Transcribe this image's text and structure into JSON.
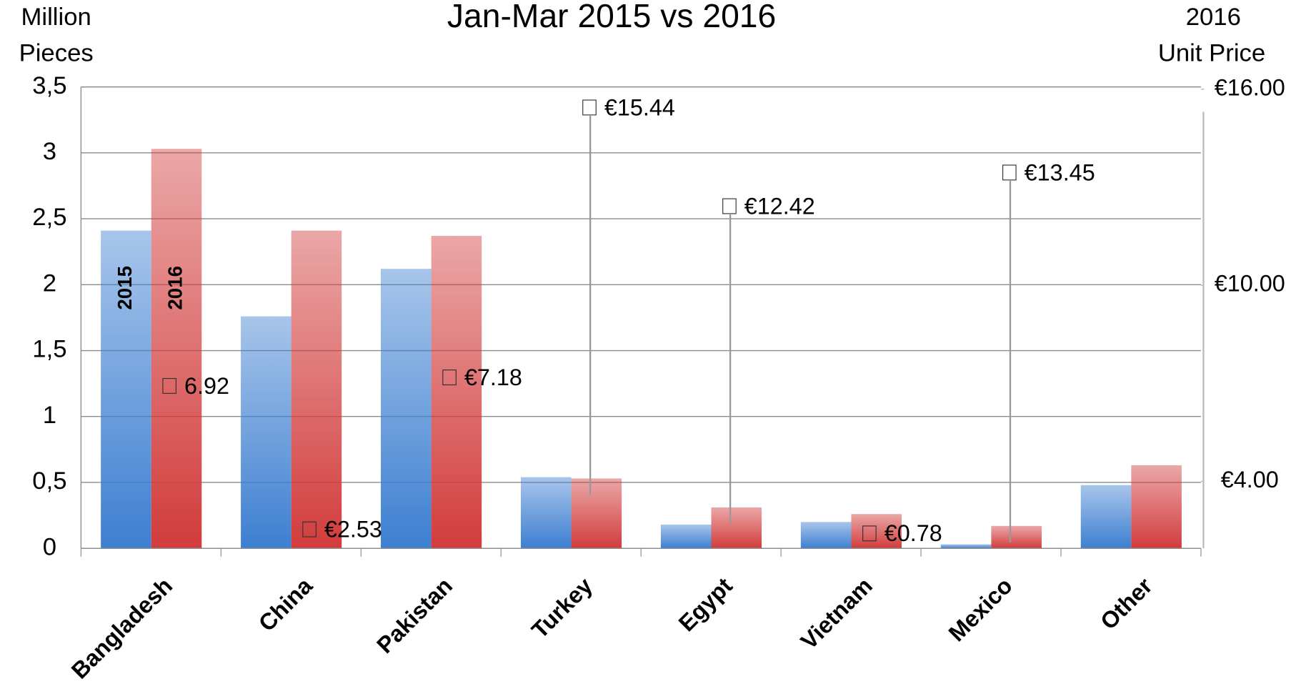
{
  "chart_data": {
    "type": "bar",
    "title": "Jan-Mar 2015 vs 2016",
    "y_label": [
      "Million",
      "Pieces"
    ],
    "y2_label": [
      "2016",
      "Unit Price"
    ],
    "categories": [
      "Bangladesh",
      "China",
      "Pakistan",
      "Turkey",
      "Egypt",
      "Vietnam",
      "Mexico",
      "Other"
    ],
    "series": [
      {
        "name": "2015",
        "color": "#3d7fd1",
        "values": [
          2.41,
          1.76,
          2.12,
          0.54,
          0.18,
          0.2,
          0.03,
          0.48
        ]
      },
      {
        "name": "2016",
        "color": "#d23c3c",
        "values": [
          3.03,
          2.41,
          2.37,
          0.53,
          0.31,
          0.26,
          0.17,
          0.63
        ]
      },
      {
        "name": "2016 Unit Price",
        "axis": "y2",
        "values": [
          6.92,
          2.53,
          7.18,
          15.44,
          12.42,
          0.78,
          13.45,
          null
        ],
        "value_labels": [
          "6.92",
          "€2.53",
          "€7.18",
          "€15.44",
          "€12.42",
          "€0.78",
          "€13.45",
          null
        ]
      }
    ],
    "ylim": [
      0,
      3.5
    ],
    "yticks": [
      0,
      {
        "value": 0.5,
        "label": "0,5"
      },
      1,
      {
        "value": 1.5,
        "label": "1,5"
      },
      2,
      {
        "value": 2.5,
        "label": "2,5"
      },
      3,
      {
        "value": 3.5,
        "label": "3,5"
      }
    ],
    "y2lim": [
      1.95,
      16.07
    ],
    "y2ticks": [
      {
        "value": 4,
        "label": "€4.00"
      },
      {
        "value": 10,
        "label": "€10.00"
      },
      {
        "value": 16,
        "label": "€16.00"
      }
    ],
    "grid": true
  }
}
